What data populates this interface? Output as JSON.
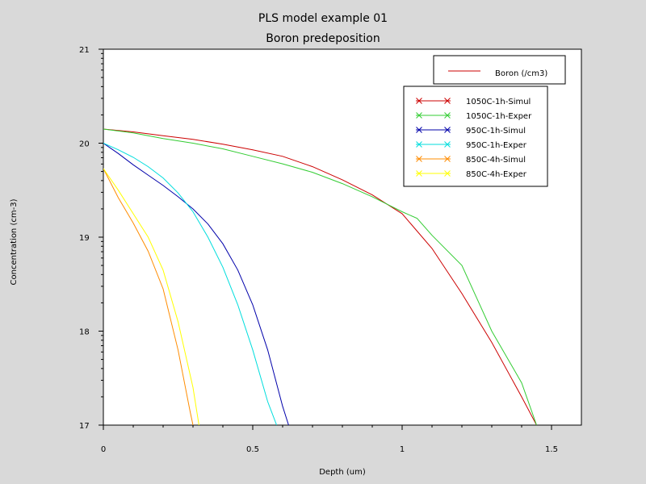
{
  "chart_data": {
    "type": "line",
    "title": "PLS model example 01",
    "subtitle": "Boron predeposition",
    "xlabel": "Depth (um)",
    "ylabel": "Concentration (cm-3)",
    "xlim": [
      0,
      1.6
    ],
    "ylim": [
      17,
      21
    ],
    "x_scale": "linear",
    "y_scale": "log10",
    "x_ticks": [
      "0",
      "0.5",
      "1",
      "1.5"
    ],
    "y_ticks": [
      "17",
      "18",
      "19",
      "20",
      "21"
    ],
    "grid": false,
    "legend_main": {
      "label": "Boron (/cm3)",
      "color": "#cc0000"
    },
    "series": [
      {
        "name": "1050C-1h-Simul",
        "color": "#cc0000",
        "x": [
          0,
          0.1,
          0.2,
          0.3,
          0.4,
          0.5,
          0.6,
          0.7,
          0.8,
          0.9,
          1.0,
          1.1,
          1.2,
          1.3,
          1.4,
          1.45
        ],
        "y": [
          20.15,
          20.12,
          20.08,
          20.04,
          19.99,
          19.93,
          19.86,
          19.75,
          19.61,
          19.45,
          19.25,
          18.88,
          18.4,
          17.88,
          17.3,
          17.0
        ]
      },
      {
        "name": "1050C-1h-Exper",
        "color": "#33cc33",
        "x": [
          0,
          0.1,
          0.2,
          0.3,
          0.4,
          0.5,
          0.6,
          0.7,
          0.8,
          0.9,
          1.0,
          1.05,
          1.1,
          1.2,
          1.3,
          1.4,
          1.45
        ],
        "y": [
          20.15,
          20.11,
          20.05,
          20.0,
          19.94,
          19.86,
          19.78,
          19.69,
          19.57,
          19.43,
          19.27,
          19.2,
          19.02,
          18.7,
          18.0,
          17.45,
          17.0
        ]
      },
      {
        "name": "950C-1h-Simul",
        "color": "#0000aa",
        "x": [
          0,
          0.05,
          0.1,
          0.15,
          0.2,
          0.25,
          0.3,
          0.35,
          0.4,
          0.45,
          0.5,
          0.55,
          0.6,
          0.62
        ],
        "y": [
          20.0,
          19.89,
          19.77,
          19.66,
          19.55,
          19.43,
          19.3,
          19.14,
          18.93,
          18.65,
          18.28,
          17.8,
          17.2,
          17.0
        ]
      },
      {
        "name": "950C-1h-Exper",
        "color": "#00dddd",
        "x": [
          0,
          0.05,
          0.1,
          0.15,
          0.2,
          0.25,
          0.3,
          0.35,
          0.4,
          0.45,
          0.5,
          0.55,
          0.58
        ],
        "y": [
          20.0,
          19.93,
          19.85,
          19.75,
          19.63,
          19.47,
          19.27,
          19.0,
          18.68,
          18.28,
          17.8,
          17.25,
          17.0
        ]
      },
      {
        "name": "850C-4h-Simul",
        "color": "#ff8c00",
        "x": [
          0,
          0.05,
          0.1,
          0.15,
          0.2,
          0.25,
          0.29,
          0.3
        ],
        "y": [
          19.73,
          19.42,
          19.15,
          18.85,
          18.45,
          17.8,
          17.15,
          17.0
        ]
      },
      {
        "name": "850C-4h-Exper",
        "color": "#ffff00",
        "x": [
          0,
          0.05,
          0.1,
          0.15,
          0.2,
          0.25,
          0.3,
          0.32
        ],
        "y": [
          19.73,
          19.5,
          19.25,
          19.0,
          18.65,
          18.1,
          17.4,
          17.0
        ]
      }
    ]
  }
}
